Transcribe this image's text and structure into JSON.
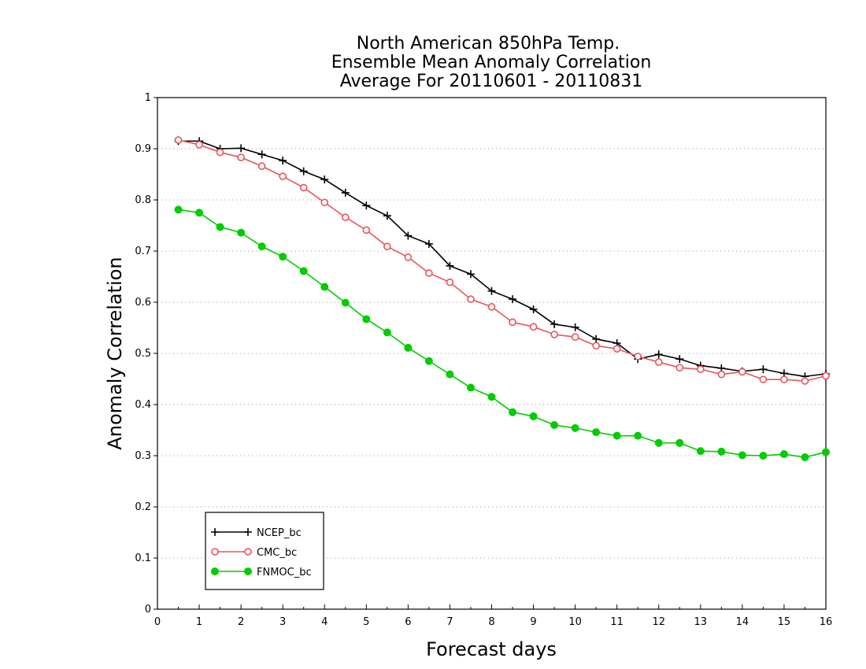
{
  "chart_data": {
    "type": "line",
    "title_lines": [
      "North American 850hPa Temp.",
      "Ensemble Mean Anomaly Correlation",
      "Average For 20110601 - 20110831"
    ],
    "xlabel": "Forecast days",
    "ylabel": "Anomaly Correlation",
    "xlim": [
      0,
      16
    ],
    "ylim": [
      0,
      1
    ],
    "x_ticks": [
      "0",
      "1",
      "2",
      "3",
      "4",
      "5",
      "6",
      "7",
      "8",
      "9",
      "10",
      "11",
      "12",
      "13",
      "14",
      "15",
      "16"
    ],
    "y_ticks": [
      "0",
      "0.1",
      "0.2",
      "0.3",
      "0.4",
      "0.5",
      "0.6",
      "0.7",
      "0.8",
      "0.9",
      "1"
    ],
    "grid": "horizontal dotted",
    "legend_position": "bottom-left",
    "x": [
      0.5,
      1,
      1.5,
      2,
      2.5,
      3,
      3.5,
      4,
      4.5,
      5,
      5.5,
      6,
      6.5,
      7,
      7.5,
      8,
      8.5,
      9,
      9.5,
      10,
      10.5,
      11,
      11.5,
      12,
      12.5,
      13,
      13.5,
      14,
      14.5,
      15,
      15.5,
      16
    ],
    "series": [
      {
        "name": "NCEP_bc",
        "color": "#000000",
        "marker": "plus",
        "values": [
          0.915,
          0.915,
          0.9,
          0.901,
          0.889,
          0.877,
          0.856,
          0.84,
          0.814,
          0.789,
          0.769,
          0.73,
          0.714,
          0.671,
          0.655,
          0.622,
          0.606,
          0.586,
          0.557,
          0.551,
          0.528,
          0.52,
          0.489,
          0.498,
          0.489,
          0.476,
          0.471,
          0.465,
          0.469,
          0.461,
          0.455,
          0.46
        ]
      },
      {
        "name": "CMC_bc",
        "color": "#e8545a",
        "marker": "open-circle",
        "values": [
          0.917,
          0.908,
          0.893,
          0.883,
          0.866,
          0.846,
          0.824,
          0.795,
          0.766,
          0.741,
          0.709,
          0.688,
          0.657,
          0.639,
          0.606,
          0.591,
          0.561,
          0.552,
          0.537,
          0.532,
          0.515,
          0.509,
          0.494,
          0.483,
          0.472,
          0.469,
          0.459,
          0.464,
          0.449,
          0.449,
          0.446,
          0.456
        ]
      },
      {
        "name": "FNMOC_bc",
        "color": "#00cc00",
        "marker": "filled-circle",
        "values": [
          0.781,
          0.775,
          0.747,
          0.736,
          0.709,
          0.689,
          0.661,
          0.63,
          0.599,
          0.567,
          0.541,
          0.511,
          0.485,
          0.459,
          0.433,
          0.415,
          0.385,
          0.377,
          0.36,
          0.354,
          0.346,
          0.339,
          0.339,
          0.325,
          0.325,
          0.309,
          0.308,
          0.301,
          0.3,
          0.303,
          0.297,
          0.307
        ]
      }
    ]
  }
}
